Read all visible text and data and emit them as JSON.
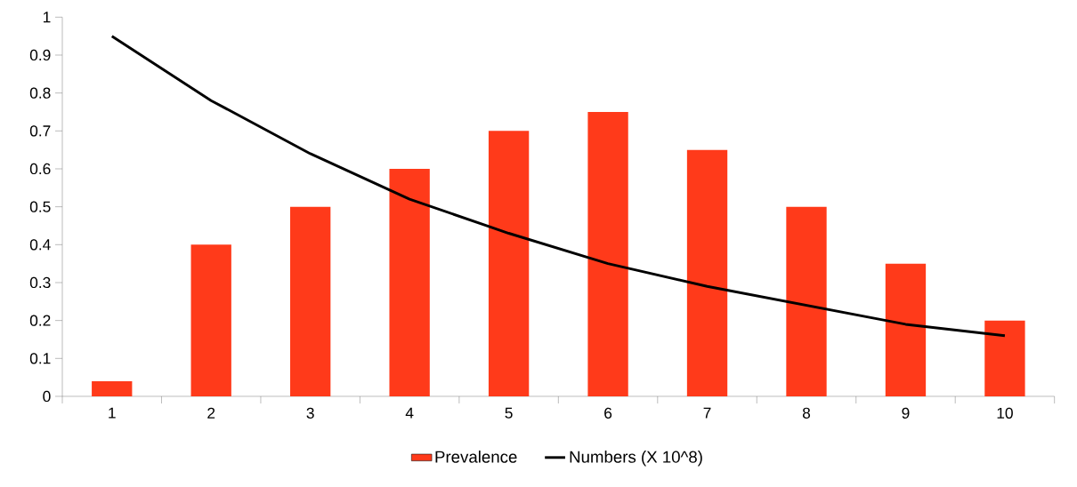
{
  "chart_data": {
    "type": "bar",
    "categories": [
      "1",
      "2",
      "3",
      "4",
      "5",
      "6",
      "7",
      "8",
      "9",
      "10"
    ],
    "series": [
      {
        "name": "Prevalence",
        "color": "#ff3a1a",
        "values": [
          0.04,
          0.4,
          0.5,
          0.6,
          0.7,
          0.75,
          0.65,
          0.5,
          0.35,
          0.2
        ]
      },
      {
        "name": "Numbers (X 10^8)",
        "type": "line",
        "color": "#000000",
        "values": [
          0.95,
          0.78,
          0.64,
          0.52,
          0.43,
          0.35,
          0.29,
          0.24,
          0.19,
          0.16
        ]
      }
    ],
    "ylim": [
      0,
      1
    ],
    "yticks": [
      0,
      0.1,
      0.2,
      0.3,
      0.4,
      0.5,
      0.6,
      0.7,
      0.8,
      0.9,
      1
    ],
    "legend": "bottom",
    "marker": "none",
    "line_style": "solid"
  }
}
